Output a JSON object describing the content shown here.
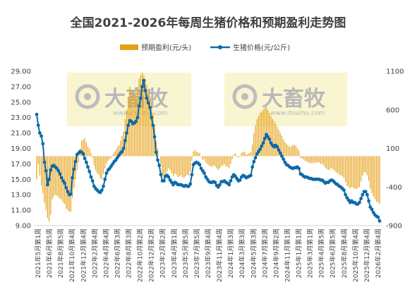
{
  "chart_data": {
    "type": "bar+line",
    "title": "全国2021-2026年每周生猪价格和预期盈利走势图",
    "legend": {
      "position": "top-center",
      "items": [
        {
          "label": "预期盈利(元/头)",
          "type": "bar",
          "color": "#e6a118"
        },
        {
          "label": "生猪价格(元/公斤)",
          "type": "line",
          "color": "#0e6aa8"
        }
      ]
    },
    "watermark": {
      "text": "大畜牧",
      "url": "www.dxumu.com"
    },
    "y_left": {
      "min": 9,
      "max": 29,
      "ticks": [
        "29.00",
        "27.00",
        "25.00",
        "23.00",
        "21.00",
        "19.00",
        "17.00",
        "15.00",
        "13.00",
        "11.00",
        "9.00"
      ]
    },
    "y_right": {
      "min": -900,
      "max": 1100,
      "ticks": [
        "1100",
        "600",
        "100",
        "-400",
        "-900"
      ]
    },
    "x_ticks": [
      "2021年5月第1周",
      "2021年6月第5周",
      "2021年8月第5周",
      "2021年10月第4周",
      "2021年12月第4周",
      "2022年2月第4周",
      "2022年4月第4周",
      "2022年6月第3周",
      "2022年8月第3周",
      "2022年10月第2周",
      "2022年12月第2周",
      "2023年2月第2周",
      "2023年4月第1周",
      "2023年5月第5周",
      "2023年7月第5周",
      "2023年9月第4周",
      "2023年11月第4周",
      "2024年1月第3周",
      "2024年3月第3周",
      "2024年5月第3周",
      "2024年7月第2周",
      "2024年9月第2周",
      "2024年11月第1周",
      "2025年1月第1周",
      "2025年3月第1周",
      "2025年4月第5周",
      "2025年6月第5周",
      "2025年8月第4周",
      "2025年10月第4周",
      "2025年12月第4周",
      "2026年2月第4周"
    ],
    "price_series": {
      "name": "生猪价格(元/公斤)",
      "values": [
        23.4,
        22.0,
        21.0,
        20.6,
        19.6,
        17.2,
        16.1,
        14.3,
        15.0,
        16.2,
        16.7,
        16.8,
        16.6,
        16.4,
        16.1,
        15.7,
        15.2,
        14.8,
        14.5,
        13.9,
        13.4,
        13.0,
        13.1,
        15.2,
        16.3,
        17.3,
        18.2,
        18.4,
        18.6,
        18.5,
        18.3,
        17.7,
        17.2,
        16.6,
        16.0,
        15.3,
        14.8,
        14.1,
        13.8,
        13.6,
        13.4,
        13.3,
        13.6,
        14.1,
        15.0,
        15.8,
        16.2,
        16.4,
        16.7,
        17.0,
        17.3,
        17.5,
        17.8,
        18.1,
        18.4,
        18.6,
        19.0,
        20.0,
        21.0,
        22.0,
        22.6,
        22.5,
        22.2,
        22.3,
        22.5,
        23.0,
        24.5,
        25.5,
        27.0,
        27.8,
        26.5,
        25.5,
        24.9,
        24.3,
        23.0,
        22.0,
        20.5,
        18.5,
        17.5,
        16.8,
        15.6,
        14.8,
        14.8,
        15.4,
        15.5,
        15.3,
        14.9,
        14.6,
        14.3,
        14.6,
        14.5,
        14.3,
        14.3,
        14.3,
        14.2,
        14.1,
        14.2,
        14.1,
        14.1,
        14.4,
        15.6,
        16.9,
        17.1,
        17.2,
        17.1,
        16.9,
        16.4,
        16.1,
        15.8,
        15.3,
        15.0,
        14.7,
        14.6,
        14.6,
        14.7,
        14.6,
        14.2,
        14.0,
        14.3,
        14.7,
        14.7,
        14.8,
        14.6,
        14.5,
        14.3,
        14.8,
        15.3,
        15.6,
        15.4,
        15.1,
        14.8,
        14.9,
        15.3,
        15.5,
        15.4,
        15.2,
        15.3,
        15.4,
        15.5,
        16.6,
        17.3,
        17.8,
        18.3,
        18.6,
        18.9,
        19.3,
        19.7,
        20.3,
        20.8,
        20.5,
        20.2,
        19.7,
        19.4,
        19.2,
        19.4,
        19.2,
        18.8,
        18.4,
        18.0,
        17.6,
        17.2,
        16.9,
        16.8,
        16.6,
        16.5,
        16.4,
        16.5,
        16.5,
        16.6,
        16.4,
        15.7,
        15.6,
        15.4,
        15.3,
        15.3,
        15.2,
        15.1,
        15.1,
        15.0,
        15.0,
        15.0,
        15.0,
        15.0,
        14.9,
        14.9,
        14.7,
        14.5,
        14.6,
        14.6,
        14.8,
        14.9,
        14.8,
        14.6,
        14.4,
        14.3,
        14.1,
        14.0,
        13.8,
        13.6,
        13.0,
        12.6,
        12.3,
        12.0,
        12.2,
        12.0,
        12.0,
        11.8,
        11.8,
        12.0,
        12.5,
        13.0,
        13.4,
        13.4,
        13.0,
        12.2,
        11.4,
        11.1,
        10.7,
        10.4,
        10.2,
        10.1,
        9.6
      ]
    },
    "profit_series": {
      "name": "预期盈利(元/头)",
      "values": [
        -300,
        -100,
        -250,
        -380,
        -480,
        -600,
        -700,
        -800,
        -850,
        -760,
        -560,
        -520,
        -500,
        -510,
        -530,
        -550,
        -560,
        -600,
        -620,
        -680,
        -700,
        -720,
        -720,
        -540,
        -420,
        -300,
        -180,
        -80,
        100,
        200,
        220,
        230,
        180,
        130,
        100,
        40,
        -20,
        -120,
        -180,
        -220,
        -240,
        -290,
        -300,
        -230,
        -160,
        -100,
        -60,
        -40,
        -20,
        20,
        50,
        80,
        120,
        140,
        200,
        260,
        320,
        480,
        600,
        760,
        900,
        850,
        820,
        800,
        780,
        900,
        1000,
        1050,
        1080,
        1050,
        1000,
        920,
        860,
        780,
        700,
        560,
        400,
        200,
        100,
        0,
        -100,
        -250,
        -300,
        -250,
        -200,
        -160,
        -180,
        -220,
        -260,
        -230,
        -240,
        -270,
        -260,
        -250,
        -270,
        -280,
        -260,
        -240,
        -250,
        -200,
        -60,
        60,
        80,
        60,
        50,
        40,
        -10,
        -50,
        -40,
        -80,
        -100,
        -120,
        -130,
        -140,
        -120,
        -130,
        -160,
        -180,
        -160,
        -130,
        -120,
        -110,
        -130,
        -140,
        -150,
        -100,
        -40,
        20,
        40,
        0,
        -20,
        0,
        40,
        60,
        50,
        20,
        30,
        40,
        50,
        150,
        300,
        400,
        480,
        520,
        560,
        580,
        600,
        620,
        640,
        600,
        560,
        520,
        480,
        450,
        420,
        380,
        340,
        300,
        260,
        220,
        180,
        160,
        140,
        120,
        130,
        140,
        150,
        130,
        100,
        70,
        -20,
        -30,
        -40,
        -60,
        -70,
        -80,
        -90,
        -90,
        -90,
        -80,
        -90,
        -80,
        -80,
        -100,
        -100,
        -120,
        -150,
        -170,
        -180,
        -170,
        -150,
        -170,
        -190,
        -210,
        -220,
        -240,
        -250,
        -260,
        -280,
        -330,
        -380,
        -400,
        -420,
        -400,
        -410,
        -420,
        -430,
        -410,
        -400,
        -330,
        -250,
        -210,
        -210,
        -250,
        -320,
        -420,
        -480,
        -520,
        -560,
        -590,
        -600,
        -620
      ]
    }
  }
}
